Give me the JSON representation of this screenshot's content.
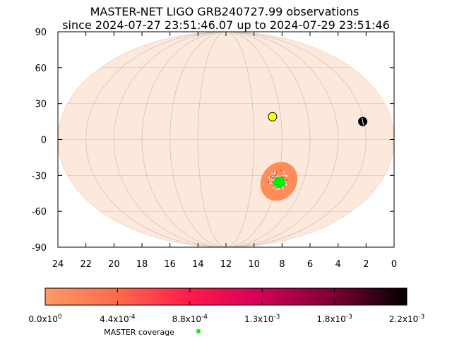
{
  "chart_data": {
    "type": "scatter",
    "title_line1": "MASTER-NET LIGO GRB240727.99 observations",
    "title_line2": "since 2024-07-27 23:51:46.07 up to 2024-07-29 23:51:46",
    "xlabel": "",
    "ylabel": "",
    "projection": "aitoff",
    "xlim": [
      24,
      0
    ],
    "ylim": [
      -90,
      90
    ],
    "x_ticks": [
      24,
      22,
      20,
      18,
      16,
      14,
      12,
      10,
      8,
      6,
      4,
      2,
      0
    ],
    "y_ticks": [
      90,
      60,
      30,
      0,
      -30,
      -60,
      -90
    ],
    "grid": true,
    "background_color": "#fde9dc",
    "grid_color": "#d0c6c0",
    "localization_region": {
      "center_ra": 7.9,
      "center_dec": -35,
      "semi_major_ra": 1.25,
      "semi_minor_dec": 17,
      "color": "#ff8c59"
    },
    "coverage_points": {
      "center_ra": 7.9,
      "center_dec": -35,
      "color": "#00ee00"
    },
    "sun": {
      "ra": 8.6,
      "dec": 19,
      "color": "#ffff00"
    },
    "moon": {
      "ra": 2.1,
      "dec": 15,
      "color": "#000000"
    },
    "colorbar": {
      "colors": [
        "#ff9966",
        "#ff6a4a",
        "#ff1a4a",
        "#d00058",
        "#7a0030",
        "#000000"
      ],
      "min": 0.0,
      "max": 0.0022,
      "tick_labels": [
        "0.0x10",
        "4.4x10",
        "8.8x10",
        "1.3x10",
        "1.8x10",
        "2.2x10"
      ],
      "tick_exponents": [
        "0",
        "-4",
        "-4",
        "-3",
        "-3",
        "-3"
      ]
    },
    "legend": [
      {
        "label": "MASTER coverage",
        "color": "#00ee00"
      }
    ]
  }
}
